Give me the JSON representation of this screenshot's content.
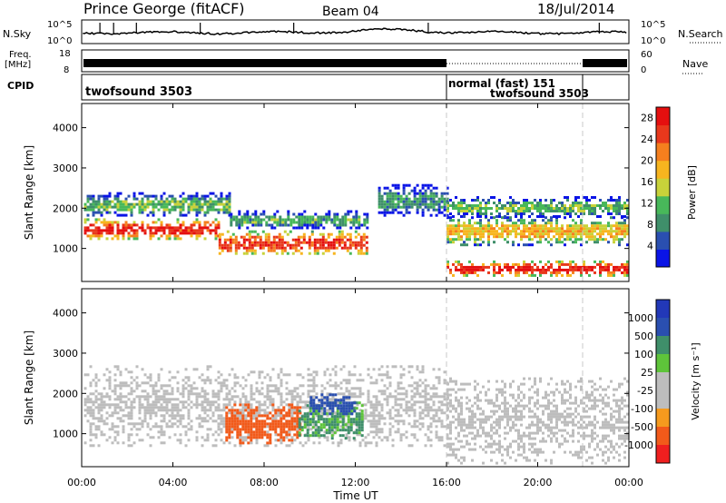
{
  "header": {
    "station": "Prince George (fitACF)",
    "beam": "Beam 04",
    "date": "18/Jul/2014"
  },
  "side_labels": {
    "nsky": "N.Sky",
    "freq_line1": "Freq.",
    "freq_line2": "[MHz]",
    "cpid": "CPID",
    "nsearch": "N.Search",
    "nave": "Nave"
  },
  "noise_panel": {
    "left_ticks": [
      "10^5",
      "10^0"
    ],
    "right_ticks": [
      "10^5",
      "10^0"
    ]
  },
  "freq_panel": {
    "left_ticks": [
      "18",
      "8"
    ],
    "right_ticks": [
      "60",
      "0"
    ]
  },
  "cpid_panel": {
    "segments": [
      {
        "label": "twofsound 3503",
        "start": 0,
        "end": 16
      },
      {
        "label": "normal (fast) 151",
        "start": 16,
        "end": 22
      },
      {
        "label": "twofsound 3503",
        "start": 22,
        "end": 24
      }
    ]
  },
  "colors": {
    "power_scale": [
      "#0a14e6",
      "#2a4fb0",
      "#3f8f6a",
      "#48b85a",
      "#c8d23a",
      "#f7b51f",
      "#f57f1e",
      "#e8381c",
      "#e50f0f"
    ],
    "velocity_scale": [
      "#ef1f1f",
      "#f25a1a",
      "#f59a1e",
      "#bdbdbd",
      "#bdbdbd",
      "#5ec43a",
      "#3f8f6a",
      "#2a4fb0",
      "#2238b8"
    ],
    "ground_scatter": "#bdbdbd"
  },
  "chart_data": [
    {
      "type": "heatmap",
      "name": "power",
      "x_range_hours": [
        0,
        24
      ],
      "xticks": [
        "00:00",
        "04:00",
        "08:00",
        "12:00",
        "16:00",
        "20:00",
        "00:00"
      ],
      "ylabel": "Slant Range [km]",
      "ylim": [
        180,
        4600
      ],
      "yticks": [
        1000,
        2000,
        3000,
        4000
      ],
      "colorbar": {
        "label": "Power [dB]",
        "ticks": [
          4,
          8,
          12,
          16,
          20,
          24,
          28
        ],
        "range": [
          0,
          30
        ]
      },
      "features": [
        {
          "t": [
            0.1,
            6.0
          ],
          "range": [
            1250,
            1750
          ],
          "value": 27
        },
        {
          "t": [
            6.0,
            12.5
          ],
          "range": [
            850,
            1450
          ],
          "value": 26
        },
        {
          "t": [
            0.1,
            6.5
          ],
          "range": [
            1800,
            2400
          ],
          "value": 12
        },
        {
          "t": [
            6.5,
            12.5
          ],
          "range": [
            1500,
            1950
          ],
          "value": 10
        },
        {
          "t": [
            13.0,
            16.0
          ],
          "range": [
            1800,
            2600
          ],
          "value": 9
        },
        {
          "t": [
            16.0,
            24.0
          ],
          "range": [
            350,
            700
          ],
          "value": 28
        },
        {
          "t": [
            16.0,
            24.0
          ],
          "range": [
            1100,
            1800
          ],
          "value": 18
        },
        {
          "t": [
            16.0,
            24.0
          ],
          "range": [
            1800,
            2300
          ],
          "value": 12
        }
      ]
    },
    {
      "type": "heatmap",
      "name": "velocity",
      "x_range_hours": [
        0,
        24
      ],
      "xticks": [
        "00:00",
        "04:00",
        "08:00",
        "12:00",
        "16:00",
        "20:00",
        "00:00"
      ],
      "xlabel": "Time UT",
      "ylabel": "Slant Range [km]",
      "ylim": [
        180,
        4600
      ],
      "yticks": [
        1000,
        2000,
        3000,
        4000
      ],
      "colorbar": {
        "label": "Velocity [m s⁻¹]",
        "ticks": [
          "1000",
          "500",
          "100",
          "25",
          "-25",
          "-100",
          "-500",
          "-1000"
        ]
      },
      "features": [
        {
          "t": [
            0.1,
            16.0
          ],
          "range": [
            700,
            2700
          ],
          "value": "ground scatter"
        },
        {
          "t": [
            16.0,
            24.0
          ],
          "range": [
            300,
            2400
          ],
          "value": "ground scatter"
        },
        {
          "t": [
            6.3,
            9.6
          ],
          "range": [
            800,
            1750
          ],
          "value": -300
        },
        {
          "t": [
            9.5,
            12.3
          ],
          "range": [
            900,
            1800
          ],
          "value": 150
        },
        {
          "t": [
            10.0,
            12.0
          ],
          "range": [
            1500,
            2000
          ],
          "value": 600
        }
      ]
    }
  ]
}
